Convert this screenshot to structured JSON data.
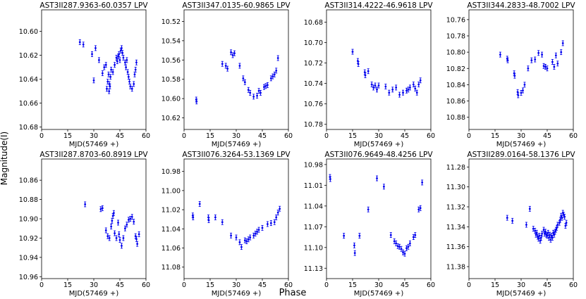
{
  "figure": {
    "ylabel": "Magnitude(I)",
    "xlabel": "Phase"
  },
  "colors": {
    "marker": "#0000ee",
    "axis": "#000000"
  },
  "chart_data": [
    {
      "type": "scatter",
      "title": "AST3II287.9363-60.0357  LPV",
      "xlabel": "MJD(57469 +)",
      "xlim": [
        0,
        60
      ],
      "xticks": [
        0,
        15,
        30,
        45,
        60
      ],
      "ylim": [
        10.582,
        10.682
      ],
      "yticks": [
        10.6,
        10.62,
        10.64,
        10.66,
        10.68
      ],
      "ytick_labels": [
        "10.60",
        "10.62",
        "10.64",
        "10.66",
        "10.68"
      ],
      "points": [
        [
          22,
          10.609
        ],
        [
          24,
          10.611
        ],
        [
          29,
          10.619
        ],
        [
          30,
          10.641
        ],
        [
          31,
          10.614
        ],
        [
          33,
          10.624
        ],
        [
          35,
          10.635
        ],
        [
          36,
          10.63
        ],
        [
          37,
          10.628
        ],
        [
          37.5,
          10.648
        ],
        [
          38,
          10.642
        ],
        [
          38.5,
          10.636
        ],
        [
          38.8,
          10.65
        ],
        [
          39,
          10.644
        ],
        [
          39.3,
          10.646
        ],
        [
          39.6,
          10.638
        ],
        [
          40,
          10.632
        ],
        [
          41,
          10.634
        ],
        [
          42,
          10.628
        ],
        [
          43,
          10.622
        ],
        [
          43.5,
          10.625
        ],
        [
          44,
          10.621
        ],
        [
          44.5,
          10.619
        ],
        [
          45,
          10.624
        ],
        [
          45.5,
          10.616
        ],
        [
          46,
          10.614
        ],
        [
          46.5,
          10.618
        ],
        [
          47,
          10.622
        ],
        [
          48,
          10.626
        ],
        [
          48.5,
          10.63
        ],
        [
          49,
          10.624
        ],
        [
          49.5,
          10.634
        ],
        [
          50,
          10.638
        ],
        [
          50.5,
          10.642
        ],
        [
          51,
          10.646
        ],
        [
          52,
          10.648
        ],
        [
          53,
          10.644
        ],
        [
          53.5,
          10.636
        ],
        [
          54,
          10.632
        ],
        [
          54.5,
          10.626
        ]
      ]
    },
    {
      "type": "scatter",
      "title": "AST3II347.0135-60.9865  LPV",
      "xlabel": "MJD(57469 +)",
      "xlim": [
        0,
        60
      ],
      "xticks": [
        0,
        15,
        30,
        45,
        60
      ],
      "ylim": [
        10.508,
        10.632
      ],
      "yticks": [
        10.52,
        10.54,
        10.56,
        10.58,
        10.6,
        10.62
      ],
      "ytick_labels": [
        "10.52",
        "10.54",
        "10.56",
        "10.58",
        "10.60",
        "10.62"
      ],
      "points": [
        [
          7,
          10.601
        ],
        [
          7.2,
          10.603
        ],
        [
          22,
          10.564
        ],
        [
          24,
          10.566
        ],
        [
          25,
          10.569
        ],
        [
          27,
          10.552
        ],
        [
          28,
          10.555
        ],
        [
          29,
          10.553
        ],
        [
          32,
          10.566
        ],
        [
          34,
          10.579
        ],
        [
          35,
          10.583
        ],
        [
          37,
          10.591
        ],
        [
          38,
          10.594
        ],
        [
          40,
          10.598
        ],
        [
          42,
          10.597
        ],
        [
          43,
          10.592
        ],
        [
          44,
          10.594
        ],
        [
          46,
          10.588
        ],
        [
          47,
          10.587
        ],
        [
          48,
          10.586
        ],
        [
          50,
          10.579
        ],
        [
          51,
          10.577
        ],
        [
          52,
          10.575
        ],
        [
          53,
          10.571
        ],
        [
          54,
          10.558
        ]
      ]
    },
    {
      "type": "scatter",
      "title": "AST3II314.4222-46.9618  LPV",
      "xlabel": "MJD(57469 +)",
      "xlim": [
        0,
        60
      ],
      "xticks": [
        0,
        15,
        30,
        45,
        60
      ],
      "ylim": [
        10.668,
        10.785
      ],
      "yticks": [
        10.68,
        10.7,
        10.72,
        10.74,
        10.76,
        10.78
      ],
      "ytick_labels": [
        "10.68",
        "10.70",
        "10.72",
        "10.74",
        "10.76",
        "10.78"
      ],
      "points": [
        [
          15,
          10.709
        ],
        [
          18,
          10.718
        ],
        [
          18.3,
          10.721
        ],
        [
          22,
          10.729
        ],
        [
          22.3,
          10.732
        ],
        [
          24,
          10.728
        ],
        [
          26,
          10.741
        ],
        [
          27,
          10.744
        ],
        [
          28,
          10.742
        ],
        [
          29,
          10.746
        ],
        [
          30,
          10.742
        ],
        [
          34,
          10.743
        ],
        [
          36,
          10.749
        ],
        [
          38,
          10.746
        ],
        [
          40,
          10.744
        ],
        [
          42,
          10.751
        ],
        [
          44,
          10.749
        ],
        [
          46,
          10.747
        ],
        [
          47,
          10.746
        ],
        [
          48,
          10.744
        ],
        [
          50,
          10.741
        ],
        [
          51,
          10.745
        ],
        [
          52,
          10.749
        ],
        [
          53,
          10.741
        ],
        [
          54,
          10.737
        ]
      ]
    },
    {
      "type": "scatter",
      "title": "AST3II344.2833-48.7002  LPV",
      "xlabel": "MJD(57469 +)",
      "xlim": [
        0,
        60
      ],
      "xticks": [
        0,
        15,
        30,
        45,
        60
      ],
      "ylim": [
        10.748,
        10.895
      ],
      "yticks": [
        10.76,
        10.78,
        10.8,
        10.82,
        10.84,
        10.86,
        10.88
      ],
      "ytick_labels": [
        "10.76",
        "10.78",
        "10.80",
        "10.82",
        "10.84",
        "10.86",
        "10.88"
      ],
      "points": [
        [
          18,
          10.803
        ],
        [
          22,
          10.808
        ],
        [
          22.3,
          10.81
        ],
        [
          26,
          10.826
        ],
        [
          26.3,
          10.829
        ],
        [
          28,
          10.849
        ],
        [
          28.3,
          10.853
        ],
        [
          30,
          10.85
        ],
        [
          31,
          10.847
        ],
        [
          32,
          10.84
        ],
        [
          34,
          10.82
        ],
        [
          36,
          10.81
        ],
        [
          38,
          10.809
        ],
        [
          40,
          10.801
        ],
        [
          42,
          10.803
        ],
        [
          43,
          10.817
        ],
        [
          44,
          10.818
        ],
        [
          45,
          10.82
        ],
        [
          48,
          10.812
        ],
        [
          49,
          10.818
        ],
        [
          50,
          10.804
        ],
        [
          51,
          10.814
        ],
        [
          53,
          10.8
        ],
        [
          54,
          10.789
        ]
      ]
    },
    {
      "type": "scatter",
      "title": "AST3II287.8703-60.8919  LPV",
      "xlabel": "MJD(57469 +)",
      "xlim": [
        0,
        60
      ],
      "xticks": [
        0,
        15,
        30,
        45,
        60
      ],
      "ylim": [
        10.838,
        10.962
      ],
      "yticks": [
        10.86,
        10.88,
        10.9,
        10.92,
        10.94,
        10.96
      ],
      "ytick_labels": [
        "10.86",
        "10.88",
        "10.90",
        "10.92",
        "10.94",
        "10.96"
      ],
      "points": [
        [
          25,
          10.885
        ],
        [
          34,
          10.89
        ],
        [
          35,
          10.889
        ],
        [
          37,
          10.912
        ],
        [
          38,
          10.918
        ],
        [
          39,
          10.92
        ],
        [
          40,
          10.908
        ],
        [
          40.5,
          10.902
        ],
        [
          41,
          10.897
        ],
        [
          41.5,
          10.894
        ],
        [
          42,
          10.915
        ],
        [
          43,
          10.92
        ],
        [
          44,
          10.904
        ],
        [
          44.5,
          10.916
        ],
        [
          45,
          10.922
        ],
        [
          46,
          10.928
        ],
        [
          47,
          10.92
        ],
        [
          48,
          10.91
        ],
        [
          49,
          10.906
        ],
        [
          50,
          10.901
        ],
        [
          51,
          10.9
        ],
        [
          52,
          10.898
        ],
        [
          53,
          10.903
        ],
        [
          54,
          10.918
        ],
        [
          54.5,
          10.921
        ],
        [
          55,
          10.926
        ],
        [
          56,
          10.916
        ]
      ]
    },
    {
      "type": "scatter",
      "title": "AST3II076.3264-53.1369  LPV",
      "xlabel": "MJD(57469 +)",
      "xlim": [
        0,
        60
      ],
      "xticks": [
        0,
        15,
        30,
        45,
        60
      ],
      "ylim": [
        10.967,
        11.092
      ],
      "yticks": [
        10.98,
        11.0,
        11.02,
        11.04,
        11.06,
        11.08
      ],
      "ytick_labels": [
        "10.98",
        "11.00",
        "11.02",
        "11.04",
        "11.06",
        "11.08"
      ],
      "points": [
        [
          5,
          11.026
        ],
        [
          5.2,
          11.028
        ],
        [
          9,
          11.014
        ],
        [
          14,
          11.028
        ],
        [
          14.2,
          11.031
        ],
        [
          18,
          11.028
        ],
        [
          22,
          11.033
        ],
        [
          27,
          11.047
        ],
        [
          30,
          11.049
        ],
        [
          32,
          11.054
        ],
        [
          33,
          11.059
        ],
        [
          35,
          11.052
        ],
        [
          36,
          11.053
        ],
        [
          37,
          11.051
        ],
        [
          38,
          11.049
        ],
        [
          40,
          11.047
        ],
        [
          41,
          11.045
        ],
        [
          42,
          11.043
        ],
        [
          43,
          11.041
        ],
        [
          45,
          11.039
        ],
        [
          48,
          11.035
        ],
        [
          50,
          11.034
        ],
        [
          52,
          11.033
        ],
        [
          53,
          11.028
        ],
        [
          54,
          11.023
        ],
        [
          55,
          11.019
        ]
      ]
    },
    {
      "type": "scatter",
      "title": "AST3II076.9649-48.4256  LPV",
      "xlabel": "MJD(57469 +)",
      "xlim": [
        0,
        60
      ],
      "xticks": [
        0,
        15,
        30,
        45,
        60
      ],
      "ylim": [
        10.972,
        11.145
      ],
      "yticks": [
        10.98,
        11.01,
        11.04,
        11.07,
        11.1,
        11.13
      ],
      "ytick_labels": [
        "10.98",
        "11.01",
        "11.04",
        "11.07",
        "11.10",
        "11.13"
      ],
      "points": [
        [
          2,
          10.998
        ],
        [
          2.2,
          11.001
        ],
        [
          10,
          11.083
        ],
        [
          16,
          11.097
        ],
        [
          16.3,
          11.108
        ],
        [
          19,
          11.083
        ],
        [
          24,
          11.045
        ],
        [
          29,
          11.0
        ],
        [
          33,
          11.012
        ],
        [
          37,
          11.082
        ],
        [
          39,
          11.091
        ],
        [
          40,
          11.094
        ],
        [
          41,
          11.098
        ],
        [
          42,
          11.099
        ],
        [
          43,
          11.102
        ],
        [
          44,
          11.107
        ],
        [
          45,
          11.109
        ],
        [
          46,
          11.101
        ],
        [
          47,
          11.099
        ],
        [
          48,
          11.094
        ],
        [
          50,
          11.085
        ],
        [
          51,
          11.082
        ],
        [
          53,
          11.045
        ],
        [
          54,
          11.043
        ],
        [
          55,
          11.006
        ]
      ]
    },
    {
      "type": "scatter",
      "title": "AST3II289.0164-58.1376  LPV",
      "xlabel": "MJD(57469 +)",
      "xlim": [
        0,
        60
      ],
      "xticks": [
        0,
        15,
        30,
        45,
        60
      ],
      "ylim": [
        11.272,
        11.392
      ],
      "yticks": [
        11.28,
        11.3,
        11.32,
        11.34,
        11.36,
        11.38
      ],
      "ytick_labels": [
        "11.28",
        "11.30",
        "11.32",
        "11.34",
        "11.36",
        "11.38"
      ],
      "points": [
        [
          22,
          11.331
        ],
        [
          25,
          11.334
        ],
        [
          33,
          11.338
        ],
        [
          35,
          11.322
        ],
        [
          37,
          11.342
        ],
        [
          38,
          11.344
        ],
        [
          38.5,
          11.348
        ],
        [
          39,
          11.346
        ],
        [
          39.5,
          11.35
        ],
        [
          40,
          11.352
        ],
        [
          40.5,
          11.349
        ],
        [
          41,
          11.354
        ],
        [
          41.5,
          11.351
        ],
        [
          42,
          11.347
        ],
        [
          43,
          11.343
        ],
        [
          43.5,
          11.347
        ],
        [
          44,
          11.345
        ],
        [
          44.5,
          11.348
        ],
        [
          45,
          11.349
        ],
        [
          45.5,
          11.346
        ],
        [
          46,
          11.351
        ],
        [
          46.5,
          11.348
        ],
        [
          47,
          11.353
        ],
        [
          47.5,
          11.349
        ],
        [
          48,
          11.351
        ],
        [
          48.5,
          11.346
        ],
        [
          49,
          11.348
        ],
        [
          49.5,
          11.345
        ],
        [
          50,
          11.343
        ],
        [
          50.5,
          11.341
        ],
        [
          51,
          11.338
        ],
        [
          52,
          11.336
        ],
        [
          52.5,
          11.333
        ],
        [
          53,
          11.329
        ],
        [
          53.5,
          11.331
        ],
        [
          54,
          11.326
        ],
        [
          54.5,
          11.328
        ],
        [
          55,
          11.33
        ],
        [
          55.5,
          11.339
        ],
        [
          56,
          11.336
        ]
      ]
    }
  ]
}
